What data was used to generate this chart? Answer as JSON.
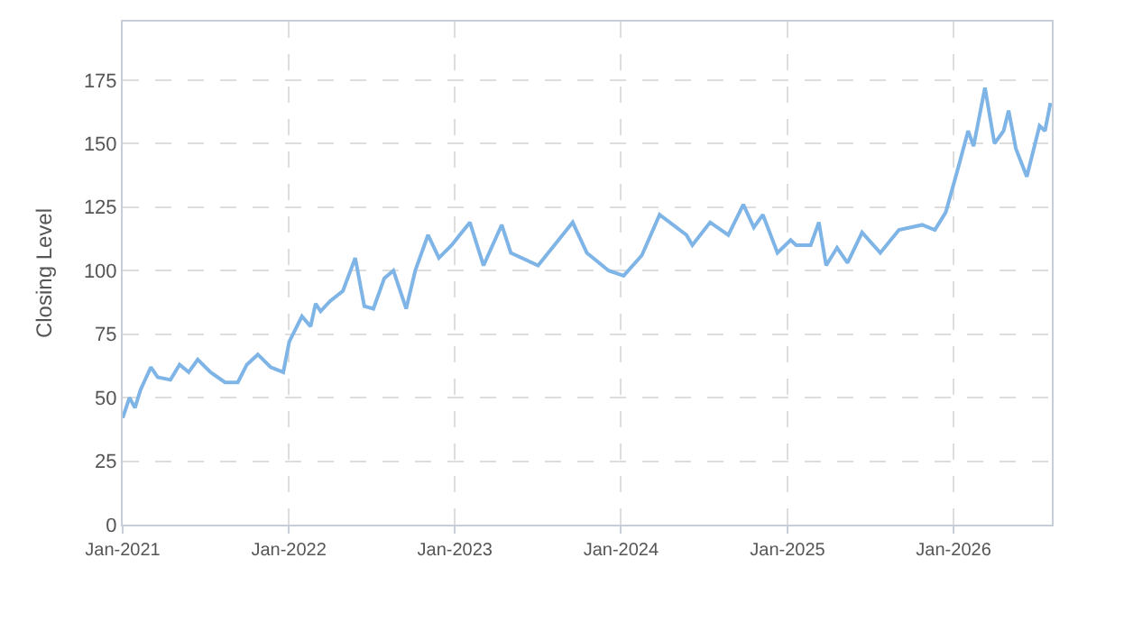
{
  "chart_data": {
    "type": "line",
    "ylabel": "Closing Level",
    "xlim": [
      "2021-01-01",
      "2026-08-05"
    ],
    "ylim": [
      0,
      198
    ],
    "yticks": [
      0,
      25,
      50,
      75,
      100,
      125,
      150,
      175
    ],
    "xticks": [
      {
        "value": "2021-01-01",
        "label": "Jan-2021"
      },
      {
        "value": "2022-01-01",
        "label": "Jan-2022"
      },
      {
        "value": "2023-01-01",
        "label": "Jan-2023"
      },
      {
        "value": "2024-01-01",
        "label": "Jan-2024"
      },
      {
        "value": "2025-01-01",
        "label": "Jan-2025"
      },
      {
        "value": "2026-01-01",
        "label": "Jan-2026"
      }
    ],
    "grid": true,
    "marker": "none",
    "line_style": "solid",
    "x": [
      "2021-01-01",
      "2021-01-16",
      "2021-01-28",
      "2021-02-09",
      "2021-03-04",
      "2021-03-19",
      "2021-04-16",
      "2021-05-06",
      "2021-05-26",
      "2021-06-15",
      "2021-07-13",
      "2021-08-14",
      "2021-09-11",
      "2021-10-01",
      "2021-10-25",
      "2021-11-22",
      "2021-12-20",
      "2022-01-02",
      "2022-01-30",
      "2022-02-18",
      "2022-03-01",
      "2022-03-12",
      "2022-04-02",
      "2022-04-30",
      "2022-05-27",
      "2022-06-16",
      "2022-07-06",
      "2022-07-30",
      "2022-08-19",
      "2022-09-16",
      "2022-10-06",
      "2022-11-03",
      "2022-11-27",
      "2022-12-25",
      "2023-02-03",
      "2023-03-05",
      "2023-04-14",
      "2023-05-04",
      "2023-07-03",
      "2023-09-17",
      "2023-10-18",
      "2023-12-05",
      "2024-01-07",
      "2024-02-16",
      "2024-03-26",
      "2024-05-24",
      "2024-06-06",
      "2024-07-15",
      "2024-08-24",
      "2024-09-26",
      "2024-10-19",
      "2024-11-08",
      "2024-12-10",
      "2025-01-08",
      "2025-01-20",
      "2025-02-21",
      "2025-03-11",
      "2025-03-27",
      "2025-04-20",
      "2025-05-13",
      "2025-06-14",
      "2025-07-24",
      "2025-09-03",
      "2025-10-24",
      "2025-11-21",
      "2025-12-15",
      "2026-01-12",
      "2026-02-02",
      "2026-02-14",
      "2026-03-11",
      "2026-04-01",
      "2026-04-21",
      "2026-05-02",
      "2026-05-18",
      "2026-06-11",
      "2026-07-09",
      "2026-07-21",
      "2026-08-02"
    ],
    "series": [
      {
        "color": "#7eb4e6",
        "values": [
          42,
          50,
          46,
          53,
          62,
          58,
          57,
          63,
          60,
          65,
          60,
          56,
          56,
          63,
          67,
          62,
          60,
          72,
          82,
          78,
          87,
          84,
          88,
          92,
          105,
          86,
          85,
          97,
          100,
          85,
          100,
          114,
          105,
          110,
          119,
          102,
          118,
          107,
          102,
          119,
          107,
          100,
          98,
          106,
          122,
          114,
          110,
          119,
          114,
          126,
          117,
          122,
          107,
          112,
          110,
          110,
          119,
          102,
          109,
          103,
          115,
          107,
          116,
          118,
          116,
          123,
          141,
          155,
          149,
          172,
          150,
          155,
          163,
          148,
          137,
          157,
          155,
          166
        ]
      }
    ]
  }
}
